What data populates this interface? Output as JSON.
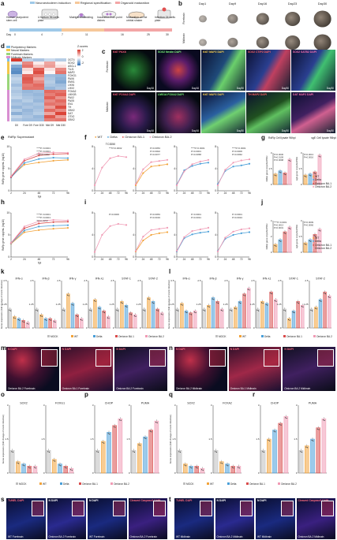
{
  "panel_letters": [
    "a",
    "b",
    "c",
    "d",
    "e",
    "f",
    "g",
    "h",
    "i",
    "j",
    "k",
    "l",
    "m",
    "n",
    "o",
    "p",
    "q",
    "r",
    "s",
    "t"
  ],
  "panel_a": {
    "legend": [
      "Neuroectoderm induction",
      "Regional specification",
      "Organoid maturation",
      "SARS-CoV-2"
    ],
    "steps": [
      "Human pluripotent stem cell",
      "U bottom 96 wells plate",
      "Matrigel embedding",
      "Incubation from point dishes",
      "Maturation on the orbital shaker",
      "Infection 24 wells plate"
    ],
    "timeline": [
      "0",
      "4",
      "7",
      "11",
      "16",
      "25",
      "30"
    ],
    "timeline_unit": "Day"
  },
  "panel_b": {
    "days": [
      "Day1",
      "Day9",
      "Day16",
      "Day23",
      "Day30"
    ],
    "rows": [
      "Forebrain",
      "Midbrain"
    ]
  },
  "panel_c": {
    "row1": [
      {
        "label": "Ki67 PAX6",
        "day": "Day16"
      },
      {
        "label": "SOX2 Nestin DAPI",
        "day": "Day16"
      },
      {
        "label": "Ki67 MAP2 DAPI",
        "day": "Day30"
      },
      {
        "label": "SOX2 CTIP2 DAPI",
        "day": "Day30"
      },
      {
        "label": "SOX2 SATB2 DAPI",
        "day": "Day30"
      }
    ],
    "row2": [
      {
        "label": "Ki67 FOXA2 DAPI",
        "day": "Day16"
      },
      {
        "label": "LMX1A FOXA2 DAPI",
        "day": "Day16"
      },
      {
        "label": "Ki67 MAP2 DAPI",
        "day": "Day30"
      },
      {
        "label": "TH MAP2 DAPI",
        "day": "Day30"
      },
      {
        "label": "DAT MAP2 DAPI",
        "day": "Day30"
      }
    ],
    "row_labels": [
      "Forebrain",
      "Midbrain"
    ]
  },
  "panel_d": {
    "legend": [
      "Pluripotency Markers",
      "Neural Markers",
      "Forebrain Markers",
      "Midbrain Markers"
    ],
    "genes": [
      "OCT4",
      "SOX2",
      "ASCL1",
      "TUJ1",
      "MAP2",
      "FOXG1",
      "PAX6",
      "EMX1",
      "LHX6",
      "LHX2",
      "FOXA2",
      "LMX1B",
      "PAX2",
      "PAX5",
      "EN1",
      "TH",
      "GBX2",
      "DAT",
      "OTX2",
      "GBX2"
    ],
    "columns": [
      "D0",
      "Fore D9",
      "Fore D30",
      "Mid D9",
      "Mid D30"
    ],
    "scale_title": "Z-scores",
    "scale_ticks": [
      "2",
      "0",
      "-2"
    ],
    "matrix": [
      [
        2.0,
        -0.6,
        -0.8,
        -0.5,
        -0.7
      ],
      [
        -0.4,
        1.2,
        0.2,
        0.9,
        0.1
      ],
      [
        -1.2,
        1.4,
        0.6,
        1.0,
        0.3
      ],
      [
        -1.5,
        0.4,
        1.6,
        0.3,
        1.2
      ],
      [
        -1.6,
        0.2,
        1.8,
        0.1,
        1.4
      ],
      [
        -0.8,
        1.5,
        1.3,
        -0.9,
        -1.0
      ],
      [
        -0.6,
        1.7,
        0.9,
        -0.8,
        -1.1
      ],
      [
        -0.7,
        1.6,
        1.2,
        -0.7,
        -1.2
      ],
      [
        -0.9,
        1.3,
        1.5,
        -0.8,
        -0.9
      ],
      [
        -0.7,
        1.4,
        1.4,
        -1.0,
        -0.8
      ],
      [
        -0.8,
        -1.0,
        -0.9,
        1.5,
        1.4
      ],
      [
        -0.7,
        -0.9,
        -1.0,
        1.3,
        1.6
      ],
      [
        -0.6,
        -0.8,
        -0.9,
        1.6,
        1.1
      ],
      [
        -0.9,
        -0.7,
        -1.0,
        1.2,
        1.5
      ],
      [
        -0.8,
        -0.9,
        -0.8,
        1.4,
        1.3
      ],
      [
        -1.0,
        -0.8,
        -0.9,
        1.0,
        1.8
      ],
      [
        -0.7,
        -1.0,
        -0.8,
        1.5,
        1.2
      ],
      [
        -1.1,
        -0.9,
        -0.7,
        0.9,
        1.9
      ],
      [
        -0.6,
        -0.8,
        -1.0,
        1.7,
        1.0
      ],
      [
        -0.8,
        -0.9,
        -0.9,
        1.3,
        1.4
      ]
    ]
  },
  "legend_ef": {
    "rdrp_supernatant": "RdRp Supernatant",
    "wt": "WT",
    "delta": "Delta",
    "ba1": "Omicron BA.1",
    "ba2": "Omicron BA.2",
    "colors": {
      "wt": "#f2a33a",
      "delta": "#4a9fd8",
      "ba1": "#d94c4c",
      "ba2": "#f09bb5"
    }
  },
  "chart_data": [
    {
      "id": "e-rdrp-forebrain",
      "type": "line",
      "title": "RdRp Supernatant",
      "ylabel": "RdRp gene copy/mL (log10)",
      "xlabel": "hpi",
      "x": [
        2,
        24,
        48,
        72,
        96
      ],
      "ylim": [
        0,
        10
      ],
      "series": [
        {
          "name": "WT",
          "values": [
            3.2,
            5.9,
            6.4,
            6.8,
            7.0
          ]
        },
        {
          "name": "Delta",
          "values": [
            3.0,
            6.3,
            7.2,
            7.5,
            7.4
          ]
        },
        {
          "name": "Omicron BA.1",
          "values": [
            3.1,
            6.8,
            8.0,
            8.3,
            8.4
          ]
        },
        {
          "name": "Omicron BA.2",
          "values": [
            3.3,
            7.1,
            8.5,
            8.7,
            8.6
          ]
        }
      ],
      "annotations": [
        "****P<0.0001",
        "****P<0.0001",
        "***P=0.0002"
      ]
    },
    {
      "id": "f-tcid50-forebrain",
      "type": "line",
      "title": "TCID50",
      "x": [
        2,
        24,
        48,
        72,
        96
      ],
      "ylim": [
        0,
        8
      ],
      "series": [
        {
          "name": "Omicron BA.2",
          "values": [
            1.0,
            4.2,
            5.9,
            6.3,
            6.1
          ]
        }
      ],
      "annotations": [
        "***P=0.0002"
      ]
    },
    {
      "id": "f-stat2-forebrain",
      "type": "line",
      "title": "",
      "x": [
        2,
        24,
        48,
        72,
        96
      ],
      "ylim": [
        0,
        8
      ],
      "series": [
        {
          "name": "WT",
          "values": [
            1.0,
            3.2,
            4.4,
            4.6,
            4.8
          ]
        },
        {
          "name": "Omicron BA.2",
          "values": [
            1.2,
            3.9,
            5.2,
            5.4,
            5.6
          ]
        }
      ],
      "annotations": [
        "P=0.0053",
        "P=0.0002",
        "P=0.0077"
      ]
    },
    {
      "id": "f-ifn-forebrain",
      "type": "line",
      "title": "",
      "x": [
        2,
        24,
        48,
        72,
        96
      ],
      "ylim": [
        0,
        8
      ],
      "series": [
        {
          "name": "Delta",
          "values": [
            1.1,
            3.7,
            4.5,
            4.9,
            5.1
          ]
        },
        {
          "name": "Omicron BA.2",
          "values": [
            1.0,
            3.5,
            4.8,
            5.3,
            5.6
          ]
        }
      ],
      "annotations": [
        "****P<0.0001",
        "P=0.0001",
        "P=0.0058"
      ]
    },
    {
      "id": "f-ifn2-forebrain",
      "type": "line",
      "title": "",
      "x": [
        2,
        24,
        48,
        72,
        96
      ],
      "ylim": [
        0,
        8
      ],
      "series": [
        {
          "name": "Delta",
          "values": [
            1.2,
            3.6,
            4.4,
            4.6,
            4.9
          ]
        },
        {
          "name": "Omicron BA.2",
          "values": [
            1.0,
            3.8,
            5.1,
            5.5,
            5.7
          ]
        }
      ],
      "annotations": [
        "****P<0.0001",
        "P=0.0006",
        "P=0.0062"
      ]
    },
    {
      "id": "e-rdrp-midbrain",
      "type": "line",
      "title": "",
      "ylabel": "RdRp gene copy/mL (log10)",
      "xlabel": "hpi",
      "x": [
        2,
        24,
        48,
        72,
        96
      ],
      "ylim": [
        0,
        10
      ],
      "series": [
        {
          "name": "WT",
          "values": [
            3.0,
            5.6,
            6.1,
            6.4,
            6.6
          ]
        },
        {
          "name": "Delta",
          "values": [
            3.1,
            6.0,
            6.9,
            7.1,
            7.2
          ]
        },
        {
          "name": "Omicron BA.1",
          "values": [
            3.2,
            6.5,
            7.6,
            7.9,
            8.0
          ]
        },
        {
          "name": "Omicron BA.2",
          "values": [
            3.2,
            6.9,
            8.1,
            8.4,
            8.3
          ]
        }
      ],
      "annotations": [
        "****P<0.0001",
        "****P<0.0001",
        "*P=0.0150"
      ]
    },
    {
      "id": "i-tcid50-midbrain",
      "type": "line",
      "title": "",
      "x": [
        2,
        24,
        48,
        72,
        96
      ],
      "ylim": [
        0,
        8
      ],
      "series": [
        {
          "name": "Omicron BA.2",
          "values": [
            0.9,
            4.0,
            5.6,
            6.0,
            5.8
          ]
        }
      ],
      "annotations": [
        "P=0.0006"
      ]
    },
    {
      "id": "i-stat2-midbrain",
      "type": "line",
      "title": "",
      "x": [
        2,
        24,
        48,
        72,
        96
      ],
      "ylim": [
        0,
        8
      ],
      "series": [
        {
          "name": "WT",
          "values": [
            1.0,
            3.0,
            4.0,
            4.3,
            4.5
          ]
        },
        {
          "name": "Omicron BA.2",
          "values": [
            1.1,
            3.7,
            4.9,
            5.1,
            5.3
          ]
        }
      ],
      "annotations": [
        "P=0.0053",
        "P=0.0019"
      ]
    },
    {
      "id": "i-ifn-midbrain",
      "type": "line",
      "title": "",
      "x": [
        2,
        24,
        48,
        72,
        96
      ],
      "ylim": [
        0,
        8
      ],
      "series": [
        {
          "name": "Delta",
          "values": [
            1.0,
            3.4,
            4.1,
            4.4,
            4.6
          ]
        },
        {
          "name": "Omicron BA.2",
          "values": [
            1.1,
            3.6,
            4.7,
            5.0,
            5.3
          ]
        }
      ],
      "annotations": [
        "P<0.0001",
        "P=0.0031"
      ]
    },
    {
      "id": "i-ifn2-midbrain",
      "type": "line",
      "title": "",
      "x": [
        2,
        24,
        48,
        72,
        96
      ],
      "ylim": [
        0,
        8
      ],
      "series": [
        {
          "name": "Delta",
          "values": [
            1.1,
            3.3,
            4.0,
            4.3,
            4.5
          ]
        },
        {
          "name": "Omicron BA.2",
          "values": [
            1.0,
            3.5,
            4.6,
            5.0,
            5.2
          ]
        }
      ],
      "annotations": [
        "P<0.0001",
        "P=0.0024"
      ]
    }
  ],
  "panel_g": {
    "titles": [
      "RdRp Cell lysate 96hpi",
      "sgE Cell lysate 96hpi"
    ],
    "ylabels": [
      "RdRp gene copy/GAPDH",
      "sgE gene copy/GAPDH"
    ],
    "legend": [
      "WT",
      "Delta",
      "Omicron BA.1",
      "Omicron BA.2"
    ],
    "values": [
      [
        1.0,
        1.3,
        1.1,
        2.4
      ],
      [
        0.9,
        1.0,
        1.2,
        2.8
      ]
    ],
    "p": [
      "P=0.0030",
      "P=0.0109",
      "P=0.0098",
      "P=0.0013",
      "P=0.0016"
    ]
  },
  "panel_j": {
    "ylabels": [
      "RdRp gene copy/GAPDH",
      "sgE gene copy/GAPDH"
    ],
    "legend": [
      "WT",
      "Delta",
      "Omicron BA.1",
      "Omicron BA.2"
    ],
    "values": [
      [
        1.0,
        1.6,
        2.6,
        3.2
      ],
      [
        0.9,
        1.2,
        1.7,
        2.2
      ]
    ],
    "p": [
      "****P<0.0001",
      "P=0.0013",
      "P=0.0031",
      "P=0.0009",
      "P=0.0066"
    ]
  },
  "panel_kl": {
    "titles": [
      "IFN-α",
      "IFN-β",
      "IFN-γ",
      "IFN-λ1",
      "STAT-1",
      "STAT-2",
      "IFN-α",
      "IFN-β",
      "IFN-γ",
      "IFN-λ1",
      "STAT-1",
      "STAT-2"
    ],
    "ylabel": "Gene expression (fold change of mock infection)",
    "legend": [
      "MOCK",
      "WT",
      "Delta",
      "Omicron BA.1",
      "Omicron BA.2"
    ],
    "sets": [
      [
        1.0,
        0.6,
        0.5,
        0.4,
        0.3
      ],
      [
        1.0,
        0.7,
        0.5,
        0.5,
        0.4
      ],
      [
        1.0,
        1.8,
        1.3,
        0.7,
        0.5
      ],
      [
        1.0,
        1.5,
        1.1,
        0.9,
        0.6
      ],
      [
        1.0,
        1.4,
        1.2,
        0.8,
        0.7
      ],
      [
        1.0,
        1.6,
        1.4,
        1.0,
        0.8
      ],
      [
        1.0,
        1.3,
        0.9,
        0.8,
        0.9
      ],
      [
        1.0,
        1.2,
        1.6,
        1.4,
        1.0
      ],
      [
        1.0,
        1.1,
        1.4,
        1.8,
        2.1
      ],
      [
        1.0,
        1.4,
        1.3,
        1.9,
        1.5
      ],
      [
        1.0,
        0.5,
        0.9,
        1.4,
        1.2
      ],
      [
        1.0,
        1.1,
        1.5,
        1.9,
        1.7
      ]
    ]
  },
  "panel_m": {
    "tiles": [
      {
        "label": "N DAPI",
        "tag": "Omicron BA.2 Forebrain"
      },
      {
        "label": "N DAPI",
        "tag": "Omicron BA.1 Forebrain"
      },
      {
        "label": "N DAPI",
        "tag": "Omicron BA.2 Forebrain"
      }
    ]
  },
  "panel_n": {
    "tiles": [
      {
        "label": "N DAPI",
        "tag": "Omicron BA.2 Midbrain"
      },
      {
        "label": "N DAPI",
        "tag": "Omicron BA.1 Midbrain"
      },
      {
        "label": "N DAPI",
        "tag": "Omicron BA.2 Midbrain"
      }
    ]
  },
  "panel_oq": {
    "titles": [
      "SOX2",
      "FOXG1",
      "CHOP",
      "PUMA",
      "SOX2",
      "FOXA2",
      "CHOP",
      "PUMA"
    ],
    "ylabel": "Gene expression (fold change of mock infection)",
    "legend": [
      "MOCK",
      "WT",
      "Delta",
      "Omicron BA.1",
      "Omicron BA.2"
    ],
    "sets": [
      [
        1.0,
        0.5,
        0.4,
        0.3,
        0.3
      ],
      [
        1.0,
        0.6,
        0.4,
        0.3,
        0.2
      ],
      [
        1.0,
        1.4,
        1.8,
        2.1,
        2.4
      ],
      [
        1.0,
        1.3,
        1.6,
        1.9,
        2.3
      ],
      [
        1.0,
        0.4,
        0.3,
        0.3,
        0.2
      ],
      [
        1.0,
        0.5,
        0.4,
        0.3,
        0.3
      ],
      [
        1.0,
        1.5,
        1.9,
        2.2,
        2.5
      ],
      [
        1.0,
        1.2,
        1.5,
        2.0,
        2.4
      ]
    ]
  },
  "panel_s": {
    "tiles": [
      {
        "label": "TUNEL DAPI",
        "tag": "WT Forebrain"
      },
      {
        "label": "N DAPI",
        "tag": "Omicron BA.2 Forebrain"
      },
      {
        "label": "N DAPI",
        "tag": "WT Forebrain"
      },
      {
        "label": "Cleaved Caspase3 DAPI",
        "tag": "Omicron BA.2 Forebrain"
      }
    ]
  },
  "panel_t": {
    "tiles": [
      {
        "label": "TUNEL DAPI",
        "tag": "WT Midbrain"
      },
      {
        "label": "N DAPI",
        "tag": "Omicron BA.2 Midbrain"
      },
      {
        "label": "N DAPI",
        "tag": "WT Midbrain"
      },
      {
        "label": "Cleaved Caspase3 DAPI",
        "tag": "Omicron BA.2 Midbrain"
      }
    ]
  }
}
